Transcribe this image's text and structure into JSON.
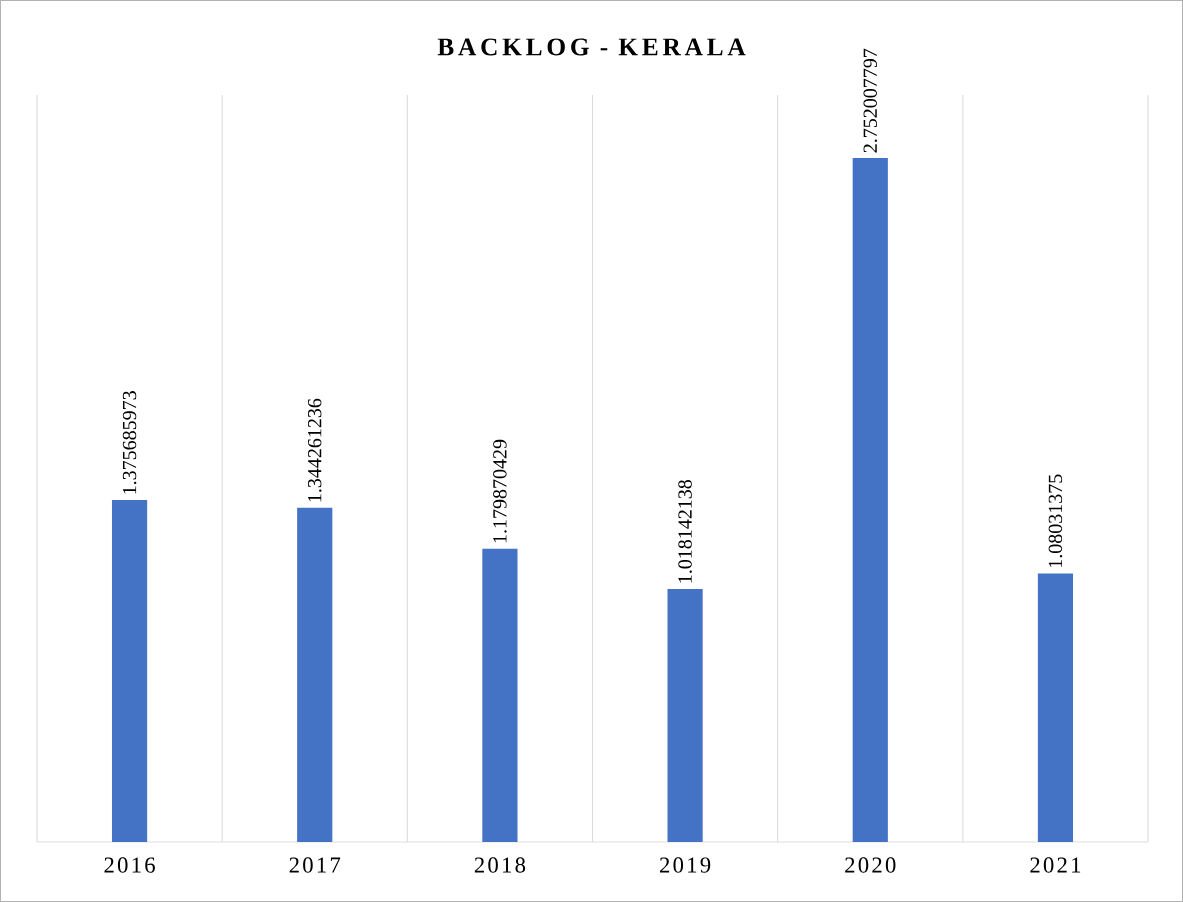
{
  "chart_data": {
    "type": "bar",
    "title": "BACKLOG - KERALA",
    "categories": [
      "2016",
      "2017",
      "2018",
      "2019",
      "2020",
      "2021"
    ],
    "values": [
      1.375685973,
      1.344261236,
      1.179870429,
      1.018142138,
      2.752007797,
      1.08031375
    ],
    "color": "#4472c4",
    "data_labels": true,
    "grid": "x"
  }
}
